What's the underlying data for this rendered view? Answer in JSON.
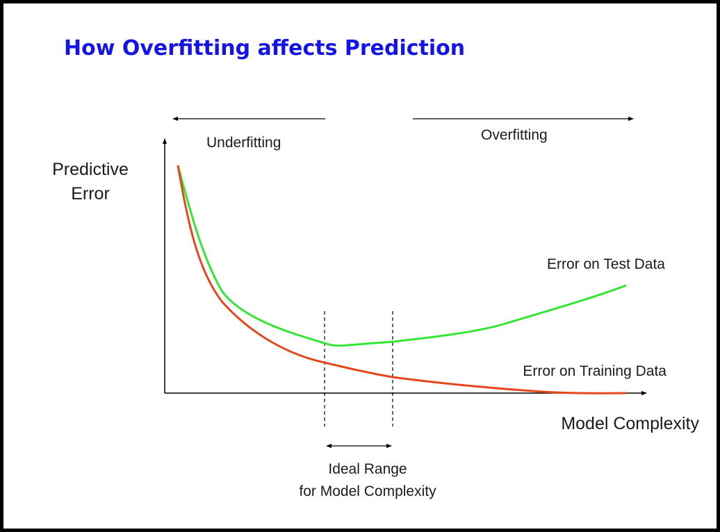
{
  "title": "How Overfitting affects Prediction",
  "labels": {
    "underfitting": "Underfitting",
    "overfitting": "Overfitting",
    "y_axis_line1": "Predictive",
    "y_axis_line2": "Error",
    "x_axis": "Model Complexity",
    "test_curve": "Error on Test Data",
    "training_curve": "Error on Training Data",
    "ideal_line1": "Ideal Range",
    "ideal_line2": "for Model Complexity"
  },
  "colors": {
    "title": "#1414e6",
    "test_curve": "#33e633",
    "training_curve": "#e6461e",
    "axes": "#000000",
    "text": "#1a1a1a"
  }
}
